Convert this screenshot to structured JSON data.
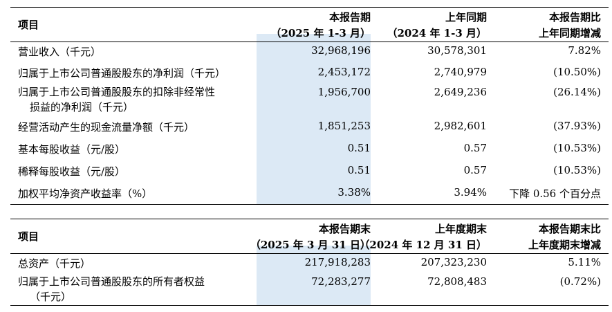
{
  "table1": {
    "header": {
      "item": "项目",
      "col1_line1": "本报告期",
      "col1_line2": "（2025 年 1-3 月）",
      "col2_line1": "上年同期",
      "col2_line2": "（2024 年 1-3 月）",
      "col3_line1": "本报告期比",
      "col3_line2": "上年同期增减"
    },
    "rows": [
      {
        "label": "营业收入（千元）",
        "v1": "32,968,196",
        "v2": "30,578,301",
        "v3": "7.82%"
      },
      {
        "label": "归属于上市公司普通股股东的净利润（千元）",
        "v1": "2,453,172",
        "v2": "2,740,979",
        "v3": "(10.50%)"
      },
      {
        "label_line1": "归属于上市公司普通股股东的扣除非经常性",
        "label_line2": "损益的净利润（千元）",
        "v1": "1,956,700",
        "v2": "2,649,236",
        "v3": "(26.14%)"
      },
      {
        "label": "经营活动产生的现金流量净额（千元）",
        "v1": "1,851,253",
        "v2": "2,982,601",
        "v3": "(37.93%)"
      },
      {
        "label": "基本每股收益（元/股）",
        "v1": "0.51",
        "v2": "0.57",
        "v3": "(10.53%)"
      },
      {
        "label": "稀释每股收益（元/股）",
        "v1": "0.51",
        "v2": "0.57",
        "v3": "(10.53%)"
      },
      {
        "label": "加权平均净资产收益率（%）",
        "v1": "3.38%",
        "v2": "3.94%",
        "v3": "下降 0.56 个百分点"
      }
    ]
  },
  "table2": {
    "header": {
      "item": "项目",
      "col1_line1": "本报告期末",
      "col1_line2": "（2025 年 3 月 31 日）",
      "col2_line1": "上年度期末",
      "col2_line2": "（2024 年 12 月 31 日）",
      "col3_line1": "本报告期末比",
      "col3_line2": "上年度期末增减"
    },
    "rows": [
      {
        "label": "总资产（千元）",
        "v1": "217,918,283",
        "v2": "207,323,230",
        "v3": "5.11%"
      },
      {
        "label_line1": "归属于上市公司普通股股东的所有者权益",
        "label_line2": "（千元）",
        "v1": "72,283,277",
        "v2": "72,808,483",
        "v3": "(0.72%)"
      }
    ]
  },
  "colors": {
    "highlight": "#dce9f5"
  }
}
